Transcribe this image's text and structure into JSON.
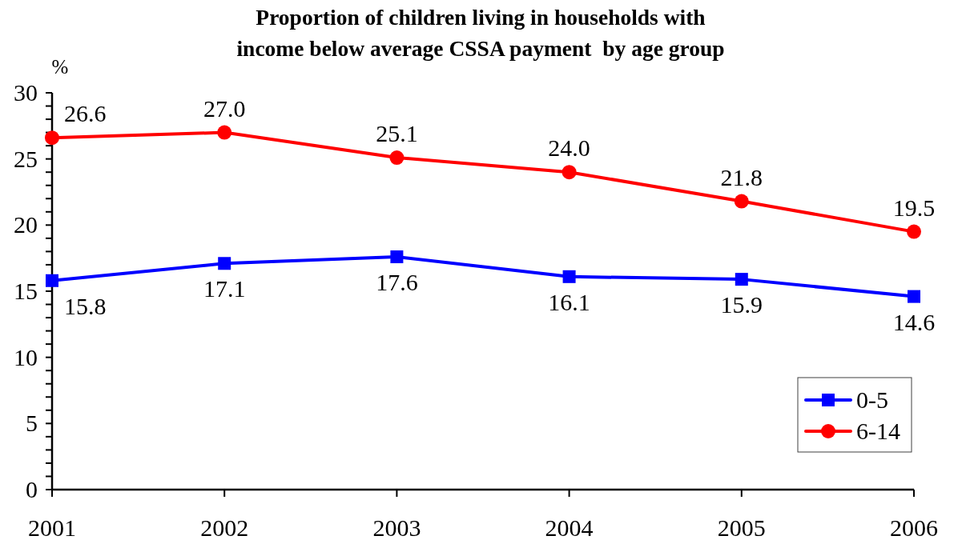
{
  "chart_data": {
    "type": "line",
    "title": "Proportion of children living in households with\nincome below average CSSA payment  by age group",
    "ylabel": "%",
    "categories": [
      "2001",
      "2002",
      "2003",
      "2004",
      "2005",
      "2006"
    ],
    "series": [
      {
        "name": "0-5",
        "color": "#0000ff",
        "marker": "square",
        "values": [
          15.8,
          17.1,
          17.6,
          16.1,
          15.9,
          14.6
        ],
        "value_labels": [
          "15.8",
          "17.1",
          "17.6",
          "16.1",
          "15.9",
          "14.6"
        ]
      },
      {
        "name": "6-14",
        "color": "#ff0000",
        "marker": "circle",
        "values": [
          26.6,
          27.0,
          25.1,
          24.0,
          21.8,
          19.5
        ],
        "value_labels": [
          "26.6",
          "27.0",
          "25.1",
          "24.0",
          "21.8",
          "19.5"
        ]
      }
    ],
    "ylim": [
      0,
      30
    ],
    "yticks": [
      0,
      {
        "value": 1,
        "label": null
      },
      {
        "value": 2,
        "label": null
      },
      {
        "value": 3,
        "label": null
      },
      {
        "value": 4,
        "label": null
      },
      5,
      {
        "value": 6,
        "label": null
      },
      {
        "value": 7,
        "label": null
      },
      {
        "value": 8,
        "label": null
      },
      {
        "value": 9,
        "label": null
      },
      10,
      {
        "value": 11,
        "label": null
      },
      {
        "value": 12,
        "label": null
      },
      {
        "value": 13,
        "label": null
      },
      {
        "value": 14,
        "label": null
      },
      15,
      {
        "value": 16,
        "label": null
      },
      {
        "value": 17,
        "label": null
      },
      {
        "value": 18,
        "label": null
      },
      {
        "value": 19,
        "label": null
      },
      20,
      {
        "value": 21,
        "label": null
      },
      {
        "value": 22,
        "label": null
      },
      {
        "value": 23,
        "label": null
      },
      {
        "value": 24,
        "label": null
      },
      25,
      {
        "value": 26,
        "label": null
      },
      {
        "value": 27,
        "label": null
      },
      {
        "value": 28,
        "label": null
      },
      {
        "value": 29,
        "label": null
      },
      30
    ],
    "legend": "bottom right"
  }
}
